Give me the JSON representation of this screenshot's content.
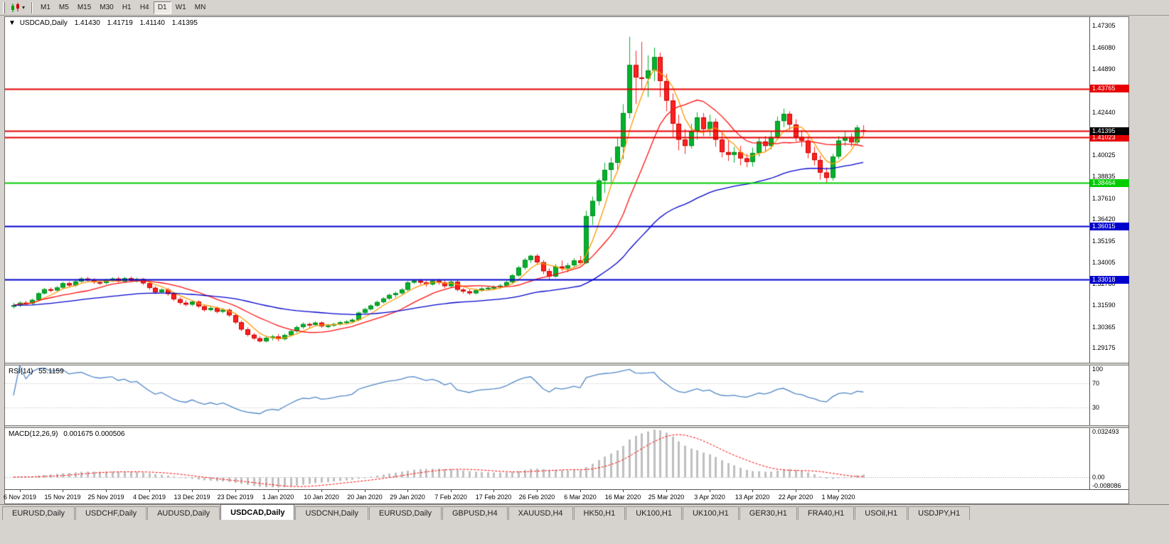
{
  "colors": {
    "up": "#00b22c",
    "up_dark": "#048a20",
    "down": "#ff2121",
    "down_dark": "#c40000",
    "rsi_line": "#4f86c6",
    "rsi_level": "#b0b0b0",
    "macd_hist": "#bfbfbf",
    "macd_signal": "#ff0000",
    "badge_black": "#000000"
  },
  "toolbar": {
    "timeframes": [
      "M1",
      "M5",
      "M15",
      "M30",
      "H1",
      "H4",
      "D1",
      "W1",
      "MN"
    ],
    "active": "D1",
    "icon_arrow": "▾"
  },
  "chart": {
    "title": {
      "expander": "▼",
      "symbol": "USDCAD,Daily",
      "open": "1.41430",
      "high": "1.41719",
      "low": "1.41140",
      "close": "1.41395"
    },
    "price_scale": {
      "max": 1.478,
      "min": 1.2835,
      "ticks": [
        "1.47305",
        "1.46080",
        "1.44890",
        "1.43665",
        "1.42440",
        "1.41215",
        "1.40025",
        "1.38835",
        "1.37610",
        "1.36420",
        "1.35195",
        "1.34005",
        "1.32780",
        "1.31590",
        "1.30365",
        "1.29175"
      ]
    },
    "current_price": "1.41395",
    "levels": [
      {
        "price": 1.43765,
        "label": "1.43765",
        "color": "#e60000",
        "badge": true
      },
      {
        "price": 1.414,
        "label": "",
        "color": "#e60000",
        "badge": false
      },
      {
        "price": 1.41023,
        "label": "1.41023",
        "color": "#e60000",
        "badge": true
      },
      {
        "price": 1.38464,
        "label": "1.38464",
        "color": "#00cc00",
        "badge": true
      },
      {
        "price": 1.36015,
        "label": "1.36015",
        "color": "#0000cc",
        "badge": true
      },
      {
        "price": 1.33018,
        "label": "1.33018",
        "color": "#0000cc",
        "badge": true
      }
    ]
  },
  "chart_data": {
    "type": "candlestick",
    "symbol": "USDCAD",
    "period": "Daily",
    "x_labels": [
      "6 Nov 2019",
      "15 Nov 2019",
      "25 Nov 2019",
      "4 Dec 2019",
      "13 Dec 2019",
      "23 Dec 2019",
      "1 Jan 2020",
      "10 Jan 2020",
      "20 Jan 2020",
      "29 Jan 2020",
      "7 Feb 2020",
      "17 Feb 2020",
      "26 Feb 2020",
      "6 Mar 2020",
      "16 Mar 2020",
      "25 Mar 2020",
      "3 Apr 2020",
      "13 Apr 2020",
      "22 Apr 2020",
      "1 May 2020"
    ],
    "label_start_bar": 1,
    "label_step": 7,
    "candles": [
      [
        1.315,
        1.3172,
        1.314,
        1.3158
      ],
      [
        1.3158,
        1.318,
        1.3148,
        1.3172
      ],
      [
        1.3172,
        1.3182,
        1.3158,
        1.3168
      ],
      [
        1.3168,
        1.3196,
        1.316,
        1.3188
      ],
      [
        1.3188,
        1.3232,
        1.318,
        1.3225
      ],
      [
        1.3225,
        1.3256,
        1.3218,
        1.3248
      ],
      [
        1.3248,
        1.3258,
        1.3232,
        1.3242
      ],
      [
        1.3242,
        1.3266,
        1.3234,
        1.3258
      ],
      [
        1.3258,
        1.329,
        1.325,
        1.3282
      ],
      [
        1.3282,
        1.3292,
        1.326,
        1.327
      ],
      [
        1.327,
        1.33,
        1.3262,
        1.3292
      ],
      [
        1.3292,
        1.3316,
        1.3284,
        1.3308
      ],
      [
        1.3308,
        1.3318,
        1.3288,
        1.3298
      ],
      [
        1.3298,
        1.331,
        1.3278,
        1.3288
      ],
      [
        1.3288,
        1.3296,
        1.3272,
        1.3284
      ],
      [
        1.3284,
        1.3306,
        1.3276,
        1.3298
      ],
      [
        1.3298,
        1.3316,
        1.329,
        1.3308
      ],
      [
        1.3308,
        1.3318,
        1.3284,
        1.3292
      ],
      [
        1.3292,
        1.3318,
        1.3284,
        1.331
      ],
      [
        1.331,
        1.332,
        1.3288,
        1.3296
      ],
      [
        1.3296,
        1.3314,
        1.3286,
        1.3305
      ],
      [
        1.3305,
        1.3312,
        1.3272,
        1.3282
      ],
      [
        1.3282,
        1.3292,
        1.3246,
        1.3256
      ],
      [
        1.3256,
        1.3266,
        1.3222,
        1.3232
      ],
      [
        1.3232,
        1.3254,
        1.3224,
        1.3246
      ],
      [
        1.3246,
        1.3256,
        1.3212,
        1.3222
      ],
      [
        1.3222,
        1.3232,
        1.3182,
        1.3192
      ],
      [
        1.3192,
        1.3204,
        1.3162,
        1.3172
      ],
      [
        1.3172,
        1.3186,
        1.3152,
        1.3162
      ],
      [
        1.3162,
        1.3184,
        1.3154,
        1.3178
      ],
      [
        1.3178,
        1.3186,
        1.3142,
        1.3152
      ],
      [
        1.3152,
        1.3162,
        1.3122,
        1.3132
      ],
      [
        1.3132,
        1.3152,
        1.3124,
        1.3142
      ],
      [
        1.3142,
        1.315,
        1.3112,
        1.3122
      ],
      [
        1.3122,
        1.3142,
        1.3114,
        1.3132
      ],
      [
        1.3132,
        1.314,
        1.3092,
        1.3102
      ],
      [
        1.3102,
        1.3112,
        1.3052,
        1.3062
      ],
      [
        1.3062,
        1.3072,
        1.3012,
        1.3022
      ],
      [
        1.3022,
        1.3034,
        1.2982,
        1.2992
      ],
      [
        1.2992,
        1.3002,
        1.2962,
        1.2972
      ],
      [
        1.2972,
        1.2984,
        1.2948,
        1.2955
      ],
      [
        1.2955,
        1.2988,
        1.2948,
        1.2975
      ],
      [
        1.2975,
        1.2992,
        1.296,
        1.2982
      ],
      [
        1.2982,
        1.2996,
        1.2955,
        1.2968
      ],
      [
        1.2968,
        1.2998,
        1.296,
        1.299
      ],
      [
        1.299,
        1.3022,
        1.2982,
        1.3012
      ],
      [
        1.3012,
        1.3044,
        1.3004,
        1.3035
      ],
      [
        1.3035,
        1.3062,
        1.3026,
        1.3052
      ],
      [
        1.3052,
        1.306,
        1.3032,
        1.3048
      ],
      [
        1.3048,
        1.3068,
        1.304,
        1.306
      ],
      [
        1.306,
        1.3068,
        1.303,
        1.304
      ],
      [
        1.304,
        1.3054,
        1.3028,
        1.3044
      ],
      [
        1.3044,
        1.306,
        1.3036,
        1.3052
      ],
      [
        1.3052,
        1.307,
        1.3044,
        1.3062
      ],
      [
        1.3062,
        1.3074,
        1.305,
        1.3066
      ],
      [
        1.3066,
        1.3084,
        1.3058,
        1.3076
      ],
      [
        1.3076,
        1.3124,
        1.3068,
        1.3116
      ],
      [
        1.3116,
        1.3144,
        1.3108,
        1.3136
      ],
      [
        1.3136,
        1.3164,
        1.3128,
        1.3156
      ],
      [
        1.3156,
        1.3184,
        1.3148,
        1.3176
      ],
      [
        1.3176,
        1.3204,
        1.3168,
        1.3196
      ],
      [
        1.3196,
        1.3224,
        1.3188,
        1.3216
      ],
      [
        1.3216,
        1.3236,
        1.3202,
        1.3226
      ],
      [
        1.3226,
        1.3254,
        1.3218,
        1.3246
      ],
      [
        1.3246,
        1.3294,
        1.3238,
        1.3286
      ],
      [
        1.3286,
        1.3304,
        1.3278,
        1.3296
      ],
      [
        1.3296,
        1.3306,
        1.3274,
        1.3286
      ],
      [
        1.3286,
        1.3296,
        1.3262,
        1.3276
      ],
      [
        1.3276,
        1.3304,
        1.3268,
        1.3296
      ],
      [
        1.3296,
        1.3306,
        1.3274,
        1.3286
      ],
      [
        1.3286,
        1.3296,
        1.3254,
        1.3266
      ],
      [
        1.3266,
        1.3296,
        1.3258,
        1.329
      ],
      [
        1.329,
        1.3298,
        1.3236,
        1.3246
      ],
      [
        1.3246,
        1.3256,
        1.3224,
        1.3236
      ],
      [
        1.3236,
        1.3248,
        1.3216,
        1.3226
      ],
      [
        1.3226,
        1.325,
        1.3218,
        1.3242
      ],
      [
        1.3242,
        1.326,
        1.3234,
        1.3252
      ],
      [
        1.3252,
        1.3264,
        1.324,
        1.3256
      ],
      [
        1.3256,
        1.327,
        1.3244,
        1.326
      ],
      [
        1.326,
        1.3278,
        1.325,
        1.3268
      ],
      [
        1.3268,
        1.3296,
        1.326,
        1.3288
      ],
      [
        1.3288,
        1.3334,
        1.328,
        1.3326
      ],
      [
        1.3326,
        1.338,
        1.3318,
        1.337
      ],
      [
        1.337,
        1.3424,
        1.3358,
        1.3413
      ],
      [
        1.3413,
        1.3443,
        1.3396,
        1.3436
      ],
      [
        1.3436,
        1.3446,
        1.3386,
        1.34
      ],
      [
        1.34,
        1.3413,
        1.3333,
        1.335
      ],
      [
        1.335,
        1.3366,
        1.3303,
        1.332
      ],
      [
        1.332,
        1.339,
        1.3313,
        1.3376
      ],
      [
        1.3376,
        1.341,
        1.335,
        1.3366
      ],
      [
        1.3366,
        1.3396,
        1.3343,
        1.3383
      ],
      [
        1.3383,
        1.3423,
        1.337,
        1.341
      ],
      [
        1.341,
        1.3436,
        1.3386,
        1.3396
      ],
      [
        1.3396,
        1.369,
        1.339,
        1.366
      ],
      [
        1.366,
        1.377,
        1.361,
        1.3745
      ],
      [
        1.3745,
        1.387,
        1.372,
        1.386
      ],
      [
        1.386,
        1.396,
        1.379,
        1.392
      ],
      [
        1.392,
        1.399,
        1.385,
        1.396
      ],
      [
        1.396,
        1.41,
        1.392,
        1.405
      ],
      [
        1.405,
        1.429,
        1.398,
        1.424
      ],
      [
        1.424,
        1.4669,
        1.421,
        1.451
      ],
      [
        1.451,
        1.459,
        1.429,
        1.444
      ],
      [
        1.444,
        1.464,
        1.437,
        1.4435
      ],
      [
        1.4435,
        1.4565,
        1.433,
        1.448
      ],
      [
        1.448,
        1.4608,
        1.442,
        1.4555
      ],
      [
        1.4555,
        1.458,
        1.433,
        1.442
      ],
      [
        1.442,
        1.446,
        1.425,
        1.431
      ],
      [
        1.431,
        1.435,
        1.4105,
        1.418
      ],
      [
        1.418,
        1.423,
        1.403,
        1.409
      ],
      [
        1.409,
        1.415,
        1.401,
        1.4055
      ],
      [
        1.4055,
        1.418,
        1.404,
        1.4135
      ],
      [
        1.4135,
        1.4245,
        1.409,
        1.4215
      ],
      [
        1.4215,
        1.424,
        1.411,
        1.415
      ],
      [
        1.415,
        1.423,
        1.411,
        1.419
      ],
      [
        1.419,
        1.421,
        1.405,
        1.409
      ],
      [
        1.409,
        1.413,
        1.399,
        1.402
      ],
      [
        1.402,
        1.409,
        1.397,
        1.4005
      ],
      [
        1.4005,
        1.405,
        1.396,
        1.402
      ],
      [
        1.402,
        1.4055,
        1.3945,
        1.3985
      ],
      [
        1.3985,
        1.401,
        1.3935,
        1.3965
      ],
      [
        1.3965,
        1.4045,
        1.3938,
        1.4015
      ],
      [
        1.4015,
        1.4105,
        1.3995,
        1.408
      ],
      [
        1.408,
        1.411,
        1.402,
        1.4055
      ],
      [
        1.4055,
        1.4135,
        1.4035,
        1.4105
      ],
      [
        1.4105,
        1.422,
        1.409,
        1.4195
      ],
      [
        1.4195,
        1.4265,
        1.416,
        1.4235
      ],
      [
        1.4235,
        1.425,
        1.4145,
        1.4175
      ],
      [
        1.4175,
        1.4205,
        1.408,
        1.4105
      ],
      [
        1.4105,
        1.4145,
        1.405,
        1.4085
      ],
      [
        1.4085,
        1.411,
        1.3985,
        1.4015
      ],
      [
        1.4015,
        1.405,
        1.3945,
        1.3975
      ],
      [
        1.3975,
        1.4,
        1.3865,
        1.3905
      ],
      [
        1.3905,
        1.3935,
        1.3848,
        1.3875
      ],
      [
        1.3875,
        1.401,
        1.386,
        1.3995
      ],
      [
        1.3995,
        1.411,
        1.398,
        1.4085
      ],
      [
        1.4085,
        1.4135,
        1.4055,
        1.4105
      ],
      [
        1.4105,
        1.4125,
        1.405,
        1.4075
      ],
      [
        1.4075,
        1.4172,
        1.406,
        1.4158
      ],
      [
        1.4143,
        1.41719,
        1.4114,
        1.41395
      ]
    ],
    "moving_averages": [
      {
        "name": "fast",
        "period": 5,
        "method": "sma",
        "color": "#ff9900"
      },
      {
        "name": "mid",
        "period": 13,
        "method": "sma",
        "color": "#ff1111"
      },
      {
        "name": "slow",
        "period": 50,
        "method": "ema",
        "color": "#0000cc"
      }
    ],
    "rsi": {
      "label": "RSI(14)",
      "value": "55.1159",
      "period": 14,
      "levels": [
        30,
        70
      ],
      "axis_ticks": [
        "100",
        "70",
        "30"
      ]
    },
    "macd": {
      "label": "MACD(12,26,9)",
      "values": "0.001675 0.000506",
      "fast": 12,
      "slow": 26,
      "signal": 9,
      "axis_max": 0.032493,
      "axis_min": -0.008086,
      "axis_ticks": [
        "0.032493",
        "0.00",
        "-0.008086"
      ]
    }
  },
  "tabs": {
    "items": [
      "EURUSD,Daily",
      "USDCHF,Daily",
      "AUDUSD,Daily",
      "USDCAD,Daily",
      "USDCNH,Daily",
      "EURUSD,Daily",
      "GBPUSD,H4",
      "XAUUSD,H4",
      "HK50,H1",
      "UK100,H1",
      "UK100,H1",
      "GER30,H1",
      "FRA40,H1",
      "USOil,H1",
      "USDJPY,H1"
    ],
    "active_index": 3
  }
}
